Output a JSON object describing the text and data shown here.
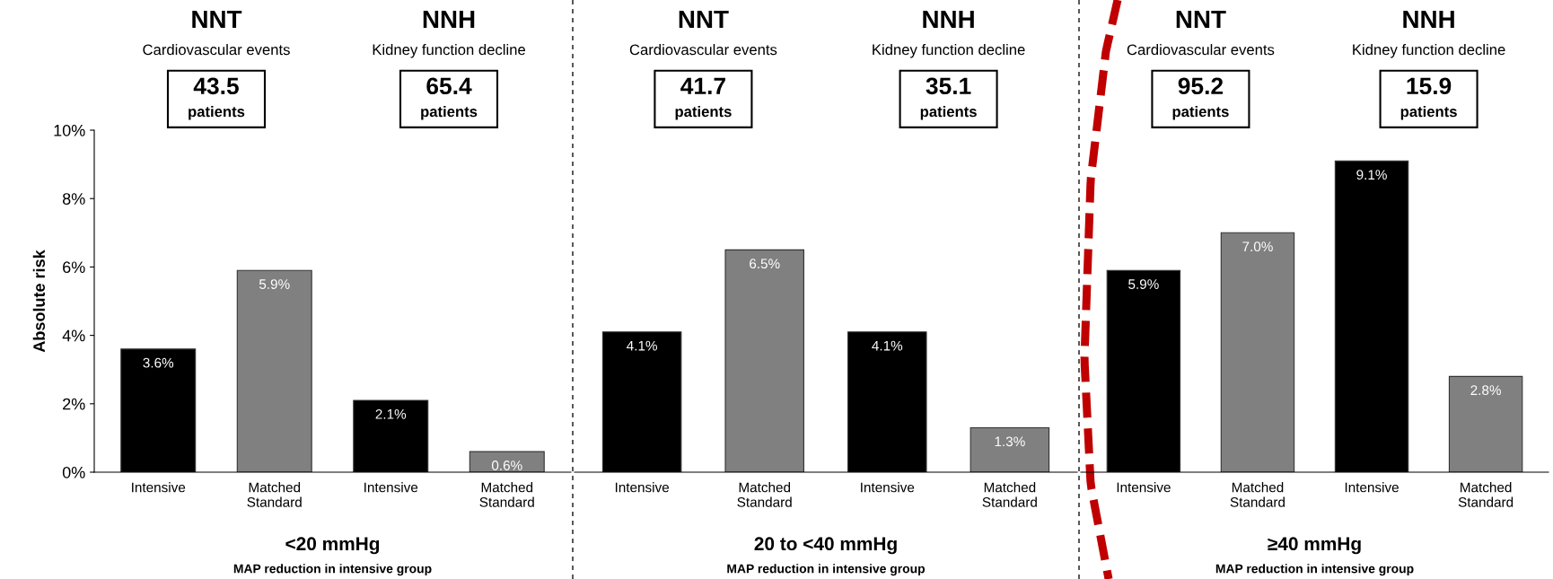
{
  "chart_data": [
    {
      "type": "bar",
      "ylabel": "Absolute risk",
      "xlabel": "<20 mmHg",
      "categories": [
        "Intensive",
        "Matched Standard",
        "Intensive",
        "Matched Standard"
      ],
      "values": [
        3.6,
        5.9,
        2.1,
        0.6
      ],
      "colors": [
        "#000000",
        "#808080",
        "#000000",
        "#808080"
      ],
      "value_labels": [
        "3.6%",
        "5.9%",
        "2.1%",
        "0.6%"
      ],
      "ylim": [
        0,
        10
      ],
      "yticks": [
        {
          "value": 0,
          "label": "0%"
        },
        {
          "value": 2,
          "label": "2%"
        },
        {
          "value": 4,
          "label": "4%"
        },
        {
          "value": 6,
          "label": "6%"
        },
        {
          "value": 8,
          "label": "8%"
        },
        {
          "value": 10,
          "label": "10%"
        }
      ],
      "annotations": [
        "NNT",
        "Cardiovascular events",
        "43.5",
        "patients",
        "NNH",
        "Kidney function decline",
        "65.4",
        "patients",
        "MAP reduction in intensive group"
      ]
    },
    {
      "type": "bar",
      "xlabel": "20 to <40 mmHg",
      "categories": [
        "Intensive",
        "Matched Standard",
        "Intensive",
        "Matched Standard"
      ],
      "values": [
        4.1,
        6.5,
        4.1,
        1.3
      ],
      "colors": [
        "#000000",
        "#808080",
        "#000000",
        "#808080"
      ],
      "value_labels": [
        "4.1%",
        "6.5%",
        "4.1%",
        "1.3%"
      ],
      "ylim": [
        0,
        10
      ],
      "tick_labels": "x",
      "annotations": [
        "NNT",
        "Cardiovascular events",
        "41.7",
        "patients",
        "NNH",
        "Kidney function decline",
        "35.1",
        "patients",
        "MAP reduction in intensive group"
      ]
    },
    {
      "type": "bar",
      "xlabel": "≥40 mmHg",
      "categories": [
        "Intensive",
        "Matched Standard",
        "Intensive",
        "Matched Standard"
      ],
      "values": [
        5.9,
        7.0,
        9.1,
        2.8
      ],
      "colors": [
        "#000000",
        "#808080",
        "#000000",
        "#808080"
      ],
      "value_labels": [
        "5.9%",
        "7.0%",
        "9.1%",
        "2.8%"
      ],
      "ylim": [
        0,
        10
      ],
      "tick_labels": "x",
      "annotations": [
        "NNT",
        "Cardiovascular events",
        "95.2",
        "patients",
        "NNH",
        "Kidney function decline",
        "15.9",
        "patients",
        "MAP reduction in intensive group"
      ]
    }
  ]
}
